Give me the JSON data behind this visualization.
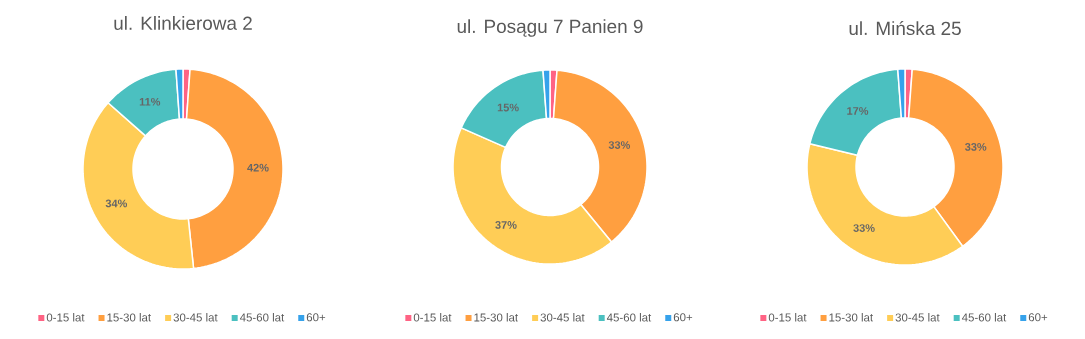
{
  "chart_data": [
    {
      "type": "donut",
      "title": "ul. Klinkierowa 2",
      "categories": [
        "0-15 lat",
        "15-30 lat",
        "30-45 lat",
        "45-60 lat",
        "60+"
      ],
      "values": [
        1,
        42,
        34,
        11,
        1
      ],
      "value_labels": [
        null,
        "42%",
        "34%",
        "11%",
        null
      ],
      "colors": [
        "#ff6384",
        "#ff9f40",
        "#ffcd56",
        "#4bc0c0",
        "#36a2eb"
      ],
      "legend": "bottom"
    },
    {
      "type": "donut",
      "title": "ul. Posągu 7 Panien 9",
      "categories": [
        "0-15 lat",
        "15-30 lat",
        "30-45 lat",
        "45-60 lat",
        "60+"
      ],
      "values": [
        1,
        33,
        37,
        15,
        1
      ],
      "value_labels": [
        null,
        "33%",
        "37%",
        "15%",
        null
      ],
      "colors": [
        "#ff6384",
        "#ff9f40",
        "#ffcd56",
        "#4bc0c0",
        "#36a2eb"
      ],
      "legend": "bottom"
    },
    {
      "type": "donut",
      "title": "ul. Mińska 25",
      "categories": [
        "0-15 lat",
        "15-30 lat",
        "30-45 lat",
        "45-60 lat",
        "60+"
      ],
      "values": [
        1,
        33,
        33,
        17,
        1
      ],
      "value_labels": [
        null,
        "33%",
        "33%",
        "17%",
        null
      ],
      "colors": [
        "#ff6384",
        "#ff9f40",
        "#ffcd56",
        "#4bc0c0",
        "#36a2eb"
      ],
      "legend": "bottom"
    }
  ]
}
